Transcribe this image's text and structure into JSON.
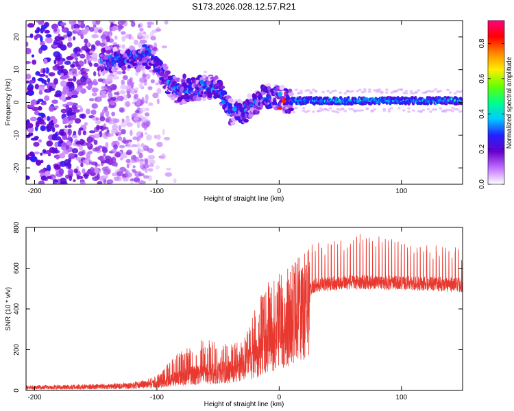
{
  "figure_title": "S173.2026.028.12.57.R21",
  "colors": {
    "line": "#e8382f",
    "axis": "#000000"
  },
  "chart_data": [
    {
      "type": "heatmap",
      "title": "S173.2026.028.12.57.R21",
      "xlabel": "Height of straight line (km)",
      "ylabel": "Frequency (Hz)",
      "xlim": [
        -207,
        150
      ],
      "ylim": [
        -25,
        25
      ],
      "xticks": [
        -200,
        -100,
        0,
        100
      ],
      "yticks": [
        -20,
        -10,
        0,
        10,
        20
      ],
      "colorbar": {
        "label": "Normalized spectral amplitude",
        "range": [
          0,
          0.93
        ],
        "ticks": [
          0.0,
          0.2,
          0.4,
          0.6,
          0.8
        ],
        "tick_labels": [
          "0.0",
          "0.2",
          "0.4",
          "0.6",
          "0.8"
        ],
        "colormap": [
          "#ffffff",
          "#c070ff",
          "#6600cc",
          "#2222ff",
          "#00ccff",
          "#00ff88",
          "#66ff00",
          "#ffee00",
          "#ff8800",
          "#ff0000",
          "#ff0080"
        ]
      },
      "ridge": [
        {
          "x": -145,
          "f": 12
        },
        {
          "x": -135,
          "f": 13
        },
        {
          "x": -125,
          "f": 13
        },
        {
          "x": -115,
          "f": 14
        },
        {
          "x": -105,
          "f": 15
        },
        {
          "x": -97,
          "f": 10
        },
        {
          "x": -90,
          "f": 6
        },
        {
          "x": -80,
          "f": 4
        },
        {
          "x": -70,
          "f": 3
        },
        {
          "x": -60,
          "f": 5
        },
        {
          "x": -50,
          "f": 4
        },
        {
          "x": -40,
          "f": -2
        },
        {
          "x": -30,
          "f": -4
        },
        {
          "x": -20,
          "f": 0
        },
        {
          "x": -10,
          "f": 2
        },
        {
          "x": 0,
          "f": 2
        },
        {
          "x": 10,
          "f": 0.5
        },
        {
          "x": 150,
          "f": 0.5
        }
      ],
      "noise_extent": [
        -207,
        -105
      ]
    },
    {
      "type": "line",
      "xlabel": "Height of straight line (km)",
      "ylabel": "SNR (10 * v/v)",
      "xlim": [
        -207,
        150
      ],
      "ylim": [
        0,
        800
      ],
      "xticks": [
        -200,
        -100,
        0,
        100
      ],
      "yticks": [
        0,
        200,
        400,
        600,
        800
      ],
      "series": [
        {
          "name": "SNR",
          "envelope": [
            {
              "x": -207,
              "base": 15,
              "spike": 25
            },
            {
              "x": -150,
              "base": 20,
              "spike": 30
            },
            {
              "x": -120,
              "base": 25,
              "spike": 40
            },
            {
              "x": -100,
              "base": 40,
              "spike": 70
            },
            {
              "x": -85,
              "base": 70,
              "spike": 170
            },
            {
              "x": -75,
              "base": 90,
              "spike": 230
            },
            {
              "x": -60,
              "base": 100,
              "spike": 260
            },
            {
              "x": -45,
              "base": 110,
              "spike": 230
            },
            {
              "x": -30,
              "base": 130,
              "spike": 240
            },
            {
              "x": -20,
              "base": 200,
              "spike": 400
            },
            {
              "x": -10,
              "base": 270,
              "spike": 530
            },
            {
              "x": 0,
              "base": 330,
              "spike": 570
            },
            {
              "x": 10,
              "base": 400,
              "spike": 620
            },
            {
              "x": 20,
              "base": 470,
              "spike": 680
            },
            {
              "x": 30,
              "base": 510,
              "spike": 720
            },
            {
              "x": 50,
              "base": 520,
              "spike": 730
            },
            {
              "x": 70,
              "base": 525,
              "spike": 760
            },
            {
              "x": 100,
              "base": 520,
              "spike": 720
            },
            {
              "x": 130,
              "base": 515,
              "spike": 700
            },
            {
              "x": 150,
              "base": 510,
              "spike": 690
            }
          ]
        }
      ]
    }
  ]
}
